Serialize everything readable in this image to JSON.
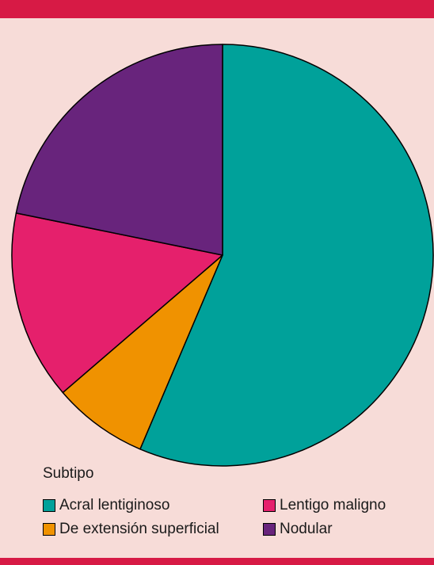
{
  "chart_data": {
    "type": "pie",
    "legend_title": "Subtipo",
    "legend_position": "bottom",
    "series": [
      {
        "name": "Acral lentiginoso",
        "value": 56.4,
        "color": "#00a19a"
      },
      {
        "name": "De extensión superficial",
        "value": 7.3,
        "color": "#f09200"
      },
      {
        "name": "Lentigo maligno",
        "value": 14.5,
        "color": "#e5206c"
      },
      {
        "name": "Nodular",
        "value": 21.8,
        "color": "#68247c"
      }
    ]
  }
}
